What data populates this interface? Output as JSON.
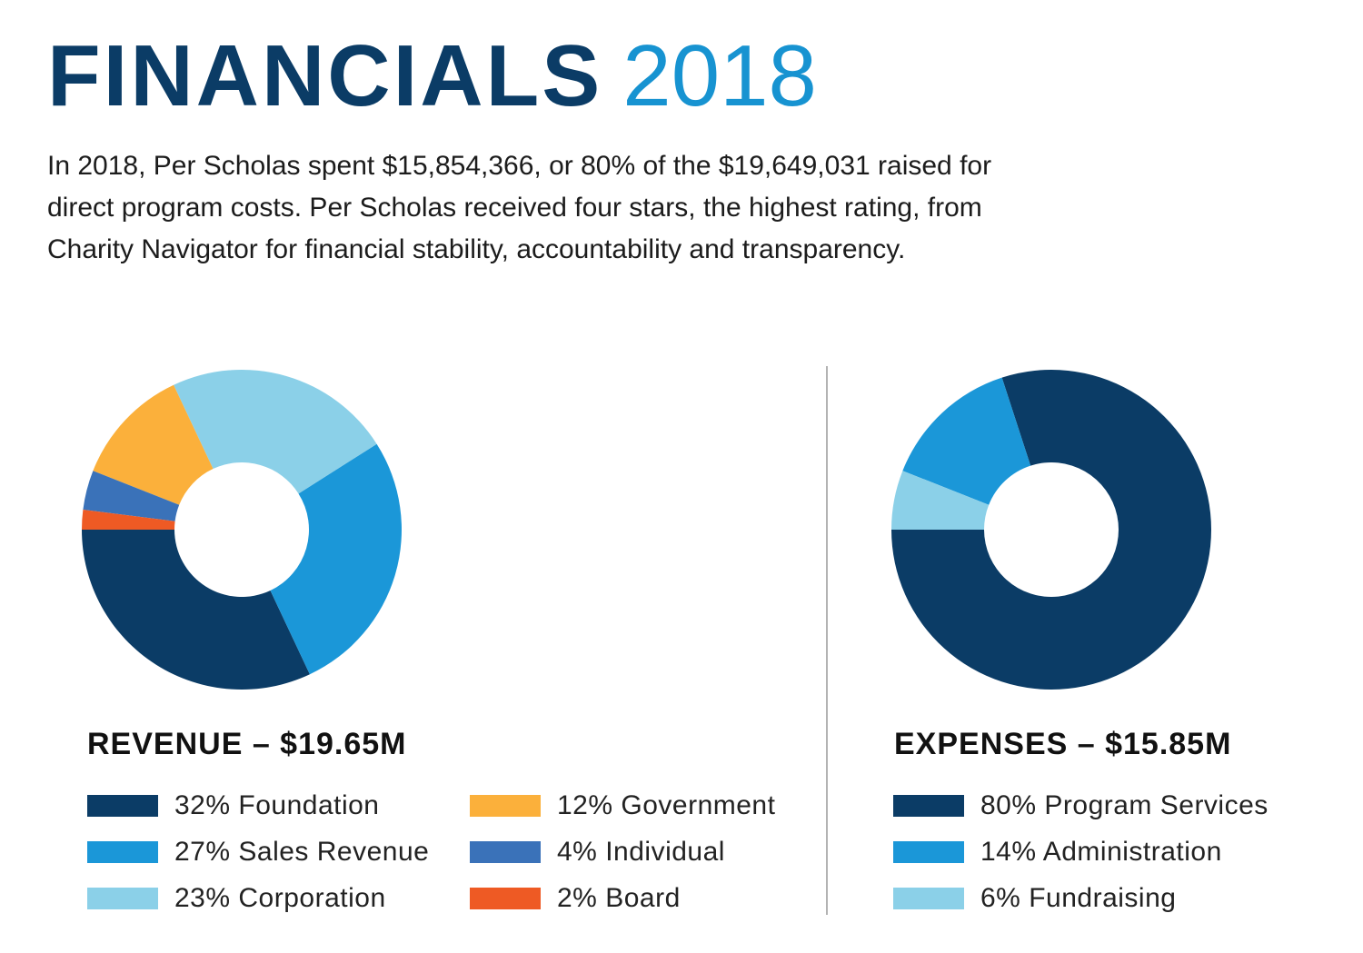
{
  "header": {
    "title_word": "FINANCIALS",
    "title_year": "2018",
    "intro": "In 2018, Per Scholas spent $15,854,366, or 80% of the $19,649,031 raised for direct program costs. Per Scholas received four stars, the highest rating, from Charity Navigator for financial stability, accountability and transparency."
  },
  "chart_data": [
    {
      "type": "pie",
      "variant": "donut",
      "title": "REVENUE – $19.65M",
      "unit": "%",
      "categories": [
        "Foundation",
        "Sales Revenue",
        "Corporation",
        "Government",
        "Individual",
        "Board"
      ],
      "values": [
        32,
        27,
        23,
        12,
        4,
        2
      ],
      "colors": [
        "#0b3c66",
        "#1b97d8",
        "#8bd0e8",
        "#fbb03b",
        "#3a72b9",
        "#ee5a24"
      ],
      "legend_labels": [
        "32% Foundation",
        "27% Sales Revenue",
        "23% Corporation",
        "12% Government",
        "4% Individual",
        "2% Board"
      ],
      "legend_position": "bottom"
    },
    {
      "type": "pie",
      "variant": "donut",
      "title": "EXPENSES – $15.85M",
      "unit": "%",
      "categories": [
        "Program Services",
        "Administration",
        "Fundraising"
      ],
      "values": [
        80,
        14,
        6
      ],
      "colors": [
        "#0b3c66",
        "#1b97d8",
        "#8bd0e8"
      ],
      "legend_labels": [
        "80% Program Services",
        "14% Administration",
        "6% Fundraising"
      ],
      "legend_position": "bottom"
    }
  ]
}
